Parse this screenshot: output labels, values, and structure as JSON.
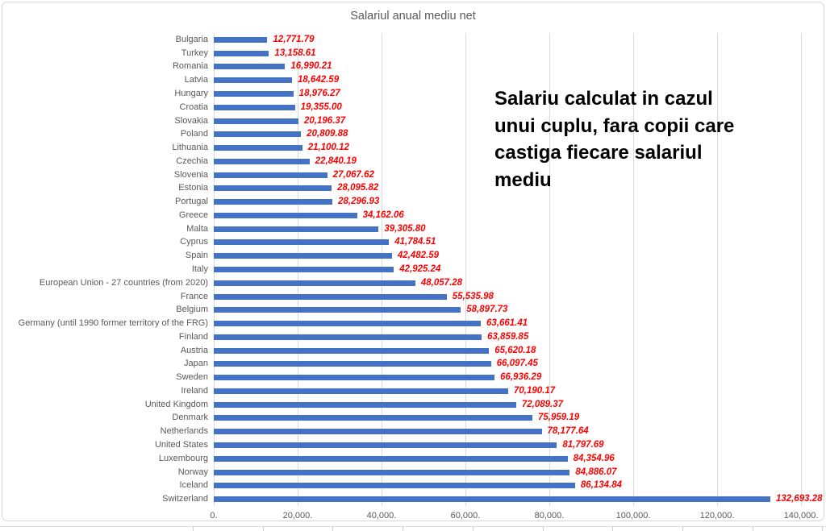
{
  "chart_data": {
    "type": "bar",
    "orientation": "horizontal",
    "title": "Salariul anual mediu net",
    "annotation_lines": [
      "Salariu calculat in cazul",
      "unui cuplu, fara copii care",
      "castiga fiecare salariul",
      "mediu"
    ],
    "categories": [
      "Bulgaria",
      "Turkey",
      "Romania",
      "Latvia",
      "Hungary",
      "Croatia",
      "Slovakia",
      "Poland",
      "Lithuania",
      "Czechia",
      "Slovenia",
      "Estonia",
      "Portugal",
      "Greece",
      "Malta",
      "Cyprus",
      "Spain",
      "Italy",
      "European Union - 27 countries (from 2020)",
      "France",
      "Belgium",
      "Germany (until 1990 former territory of the FRG)",
      "Finland",
      "Austria",
      "Japan",
      "Sweden",
      "Ireland",
      "United Kingdom",
      "Denmark",
      "Netherlands",
      "United States",
      "Luxembourg",
      "Norway",
      "Iceland",
      "Switzerland"
    ],
    "values": [
      12771.79,
      13158.61,
      16990.21,
      18642.59,
      18976.27,
      19355.0,
      20196.37,
      20809.88,
      21100.12,
      22840.19,
      27067.62,
      28095.82,
      28296.93,
      34162.06,
      39305.8,
      41784.51,
      42482.59,
      42925.24,
      48057.28,
      55535.98,
      58897.73,
      63661.41,
      63859.85,
      65620.18,
      66097.45,
      66936.29,
      70190.17,
      72089.37,
      75959.19,
      78177.64,
      81797.69,
      84354.96,
      84886.07,
      86134.84,
      132693.28
    ],
    "value_labels": [
      "12,771.79",
      "13,158.61",
      "16,990.21",
      "18,642.59",
      "18,976.27",
      "19,355.00",
      "20,196.37",
      "20,809.88",
      "21,100.12",
      "22,840.19",
      "27,067.62",
      "28,095.82",
      "28,296.93",
      "34,162.06",
      "39,305.80",
      "41,784.51",
      "42,482.59",
      "42,925.24",
      "48,057.28",
      "55,535.98",
      "58,897.73",
      "63,661.41",
      "63,859.85",
      "65,620.18",
      "66,097.45",
      "66,936.29",
      "70,190.17",
      "72,089.37",
      "75,959.19",
      "78,177.64",
      "81,797.69",
      "84,354.96",
      "84,886.07",
      "86,134.84",
      "132,693.28"
    ],
    "xlim": [
      0,
      140000
    ],
    "x_tick_values": [
      0,
      20000,
      40000,
      60000,
      80000,
      100000,
      120000,
      140000
    ],
    "x_tick_labels": [
      "0.",
      "20,000.",
      "40,000.",
      "60,000.",
      "80,000.",
      "100,000.",
      "120,000.",
      "140,000."
    ],
    "grid": true,
    "legend": "none",
    "colors": {
      "bar": "#4472C4",
      "value_label": "#FF0000",
      "axis_text": "#595959",
      "title": "#595959",
      "annotation": "#000000",
      "gridline": "#D9D9D9",
      "chart_border": "#D7D7D7"
    }
  }
}
